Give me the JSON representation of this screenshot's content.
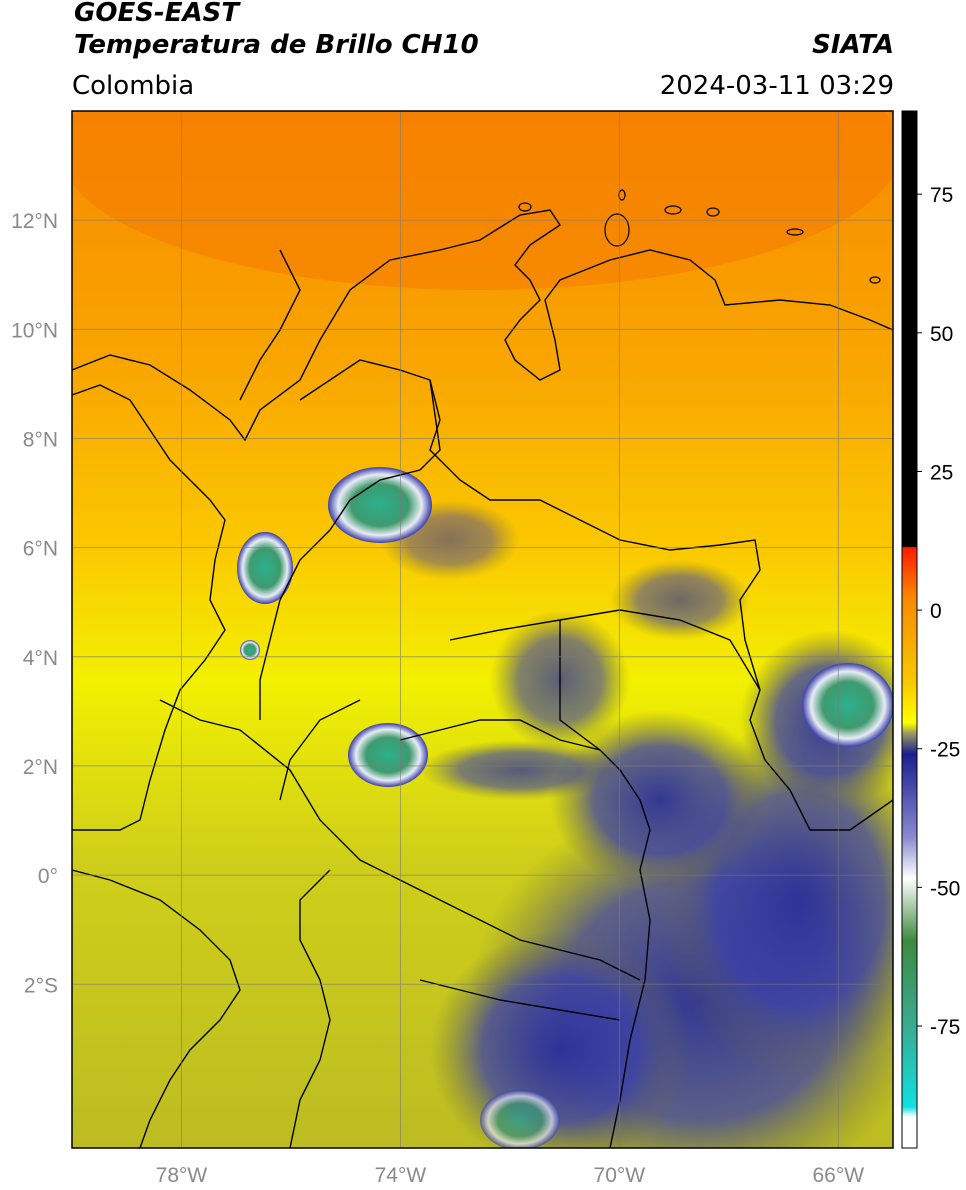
{
  "header": {
    "satellite": "GOES-EAST",
    "product": "Temperatura de Brillo CH10",
    "agency": "SIATA",
    "region": "Colombia",
    "timestamp": "2024-03-11 03:29"
  },
  "axes": {
    "lat_labels": [
      "12°N",
      "10°N",
      "8°N",
      "6°N",
      "4°N",
      "2°N",
      "0°",
      "2°S"
    ],
    "lat_values": [
      12,
      10,
      8,
      6,
      4,
      2,
      0,
      -2
    ],
    "lon_labels": [
      "78°W",
      "74°W",
      "70°W",
      "66°W"
    ],
    "lon_values": [
      -78,
      -74,
      -70,
      -66
    ],
    "lon_range": [
      -80,
      -65
    ],
    "lat_range": [
      -5,
      14
    ]
  },
  "colorbar": {
    "ticks": [
      "75",
      "50",
      "25",
      "0",
      "-25",
      "-50",
      "-75"
    ],
    "tick_values": [
      75,
      50,
      25,
      0,
      -25,
      -50,
      -75
    ],
    "range": [
      -97,
      90
    ]
  },
  "colors": {
    "warm": "#f7a000",
    "mid": "#ffff00",
    "cold": "#1b1f8f",
    "coldest": "#2db38f",
    "border": "#000000"
  }
}
